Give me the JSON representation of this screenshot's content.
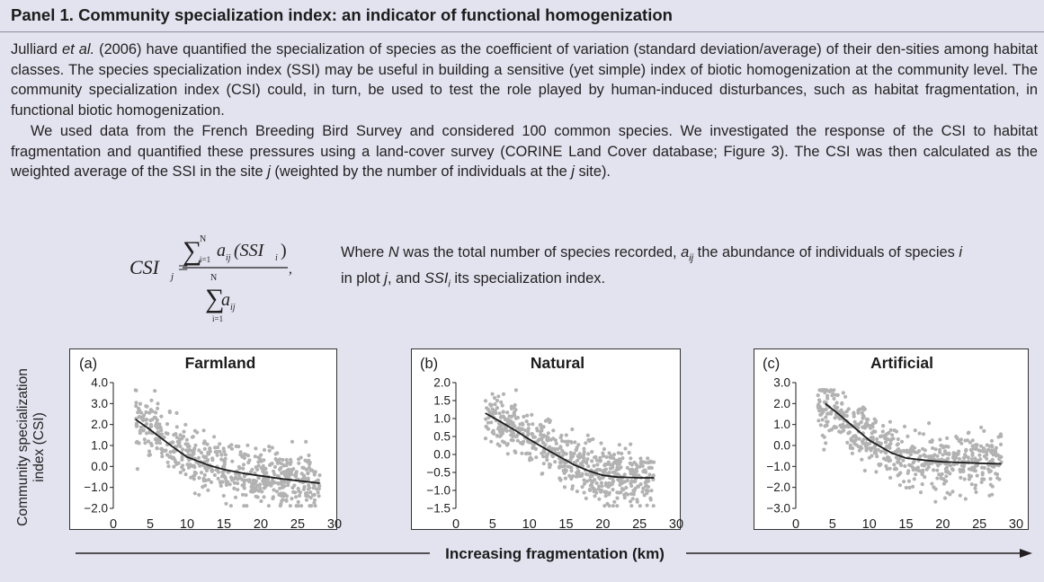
{
  "panel": {
    "title": "Panel 1. Community specialization index: an indicator of functional homogenization"
  },
  "paragraphs": {
    "p1": [
      {
        "t": "Julliard "
      },
      {
        "t": "et al.",
        "i": true
      },
      {
        "t": " (2006) have quantified the specialization of species as the coefficient of variation (standard deviation/average) of their den-sities among habitat classes. The species specialization index (SSI) may be useful in building a sensitive (yet simple) index of biotic homogenization at the community level. The community specialization index (CSI) could, in turn, be used to test the role played by human-induced disturbances, such as habitat fragmentation, in functional biotic homogenization."
      }
    ],
    "p2": [
      {
        "t": "We used data from the French Breeding Bird Survey and considered 100 common species. We investigated the response of the CSI to habitat fragmentation and quantified these pressures using a land-cover survey (CORINE Land Cover database; Figure 3). The CSI was then calculated as the weighted average of the SSI in the site "
      },
      {
        "t": "j",
        "i": true
      },
      {
        "t": " (weighted by the number of individuals at the "
      },
      {
        "t": "j",
        "i": true
      },
      {
        "t": " site)."
      }
    ]
  },
  "formula": {
    "lhs": "CSI",
    "lhs_sub": "j",
    "eq": "=",
    "sum_sym": "∑",
    "sum_sup": "N",
    "sum_sub": "i=1",
    "num_a": "a",
    "num_a_sub": "ij",
    "num_paren": "(SSI",
    "num_paren_sub": "i",
    "num_close": ")",
    "den_a": "a",
    "den_a_sub": "ij",
    "comma": ","
  },
  "formula_desc": [
    {
      "t": "Where "
    },
    {
      "t": "N",
      "i": true
    },
    {
      "t": " was the total number of species recorded, "
    },
    {
      "t": "a",
      "i": true
    },
    {
      "t": "ij",
      "i": true,
      "sub": true
    },
    {
      "t": " the abundance of individuals of species "
    },
    {
      "t": "i",
      "i": true
    },
    {
      "t": " in plot "
    },
    {
      "t": "j",
      "i": true
    },
    {
      "t": ", and "
    },
    {
      "t": "SSI",
      "i": true
    },
    {
      "t": "i",
      "i": true,
      "sub": true
    },
    {
      "t": " its specialization index."
    }
  ],
  "figure": {
    "ylabel_line1": "Community specialization",
    "ylabel_line2": "index (CSI)",
    "xlabel": "Increasing fragmentation (km)"
  },
  "chart_data": [
    {
      "type": "scatter",
      "panel_label": "(a)",
      "title": "Farmland",
      "xticks": [
        "0",
        "5",
        "10",
        "15",
        "20",
        "25",
        "30"
      ],
      "yticks": [
        "4.0",
        "3.0",
        "2.0",
        "1.0",
        "0.0",
        "−1.0",
        "−2.0"
      ],
      "xlim": [
        0,
        30
      ],
      "ylim": [
        -2.0,
        4.0
      ],
      "n_points": 600,
      "scatter_x_range": [
        3,
        28
      ],
      "scatter_color": "#b2b2b2",
      "trend": {
        "x": [
          3,
          5,
          8,
          10,
          13,
          15,
          18,
          20,
          23,
          25,
          28
        ],
        "y": [
          2.25,
          1.75,
          0.95,
          0.45,
          0.05,
          -0.15,
          -0.35,
          -0.45,
          -0.6,
          -0.68,
          -0.8
        ]
      }
    },
    {
      "type": "scatter",
      "panel_label": "(b)",
      "title": "Natural",
      "xticks": [
        "0",
        "5",
        "10",
        "15",
        "20",
        "25",
        "30"
      ],
      "yticks": [
        "2.0",
        "1.5",
        "1.0",
        "0.5",
        "0.0",
        "−0.5",
        "−1.0",
        "−1.5"
      ],
      "xlim": [
        0,
        30
      ],
      "ylim": [
        -1.5,
        2.0
      ],
      "n_points": 600,
      "scatter_x_range": [
        4,
        27
      ],
      "scatter_color": "#b2b2b2",
      "trend": {
        "x": [
          4,
          6,
          8,
          10,
          12,
          14,
          16,
          18,
          20,
          22,
          25,
          27
        ],
        "y": [
          1.15,
          0.92,
          0.68,
          0.42,
          0.18,
          -0.05,
          -0.28,
          -0.45,
          -0.58,
          -0.63,
          -0.65,
          -0.65
        ]
      }
    },
    {
      "type": "scatter",
      "panel_label": "(c)",
      "title": "Artificial",
      "xticks": [
        "0",
        "5",
        "10",
        "15",
        "20",
        "25",
        "30"
      ],
      "yticks": [
        "3.0",
        "2.0",
        "1.0",
        "0.0",
        "−1.0",
        "−2.0",
        "−3.0"
      ],
      "xlim": [
        0,
        30
      ],
      "ylim": [
        -3.0,
        3.0
      ],
      "n_points": 600,
      "scatter_x_range": [
        3,
        28
      ],
      "scatter_color": "#b2b2b2",
      "trend": {
        "x": [
          4,
          6,
          8,
          10,
          13,
          15,
          18,
          20,
          23,
          25,
          28
        ],
        "y": [
          2.0,
          1.45,
          0.85,
          0.25,
          -0.35,
          -0.6,
          -0.72,
          -0.78,
          -0.82,
          -0.85,
          -0.88
        ]
      }
    }
  ]
}
